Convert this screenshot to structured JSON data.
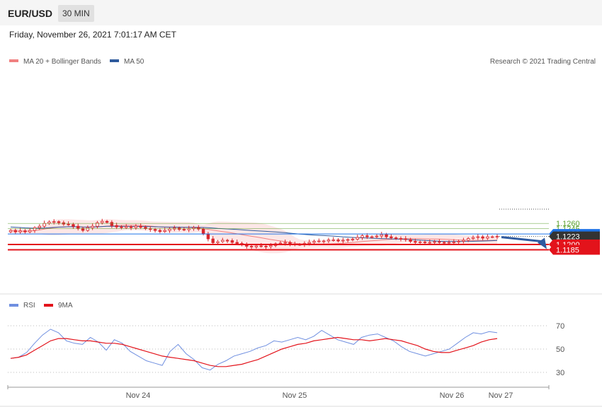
{
  "header": {
    "symbol": "EUR/USD",
    "timeframe": "30 MIN",
    "datetime": "Friday, November 26, 2021 7:01:17 AM CET"
  },
  "colors": {
    "band_fill": "#fde3e3",
    "ma20": "#f08080",
    "ma50": "#2e5a9c",
    "candle": "#d9262c",
    "green_level": "#5aa02c",
    "red_level": "#e3131b",
    "blue_level": "#1e73e8",
    "current_price": "#333333",
    "forecast_arrow": "#2e5aa0",
    "rsi": "#6f8fe0",
    "rsi_ma": "#e3131b"
  },
  "chart_data": [
    {
      "type": "candlestick",
      "title": "EUR/USD",
      "legend": [
        "MA 20 + Bollinger Bands",
        "MA 50"
      ],
      "legend_position": "top-left",
      "copyright": "Research © 2021 Trading Central",
      "ylim": [
        1.1182,
        1.1283
      ],
      "x_tick_labels": [
        "Nov 24",
        "Nov 25",
        "Nov 26",
        "Nov 27"
      ],
      "price_levels": [
        {
          "value": 1.126,
          "label": "1.1260",
          "style": "green-thin"
        },
        {
          "value": 1.1245,
          "label": "1.1245",
          "style": "green-thin"
        },
        {
          "value": 1.123,
          "label": "1.1230",
          "style": "blue-tag"
        },
        {
          "value": 1.1223,
          "label": "1.1223",
          "style": "current-price"
        },
        {
          "value": 1.12,
          "label": "1.1200",
          "style": "red-tag"
        },
        {
          "value": 1.1185,
          "label": "1.1185",
          "style": "red-tag"
        }
      ],
      "forecast_arrow": {
        "from": 1.1223,
        "to": 1.1185,
        "direction": "down"
      },
      "close": [
        1.124,
        1.1236,
        1.1239,
        1.1236,
        1.124,
        1.1248,
        1.1252,
        1.126,
        1.1264,
        1.1265,
        1.1262,
        1.1258,
        1.1257,
        1.1252,
        1.1246,
        1.124,
        1.1248,
        1.1252,
        1.1262,
        1.1266,
        1.1263,
        1.1254,
        1.125,
        1.1248,
        1.1251,
        1.1248,
        1.1252,
        1.1249,
        1.1245,
        1.1243,
        1.124,
        1.1237,
        1.124,
        1.1244,
        1.1247,
        1.1243,
        1.1242,
        1.1245,
        1.1248,
        1.1244,
        1.123,
        1.1216,
        1.1205,
        1.1208,
        1.1212,
        1.1211,
        1.1206,
        1.1203,
        1.1199,
        1.1195,
        1.1193,
        1.1196,
        1.1195,
        1.1194,
        1.1197,
        1.1202,
        1.1204,
        1.1206,
        1.1201,
        1.12,
        1.12,
        1.1203,
        1.1206,
        1.1209,
        1.121,
        1.121,
        1.1213,
        1.1213,
        1.121,
        1.1212,
        1.1214,
        1.1215,
        1.122,
        1.1225,
        1.1222,
        1.1222,
        1.1224,
        1.1228,
        1.1222,
        1.1219,
        1.1217,
        1.1216,
        1.1214,
        1.1209,
        1.1206,
        1.1207,
        1.1205,
        1.1206,
        1.1208,
        1.1206,
        1.1205,
        1.1206,
        1.1207,
        1.1209,
        1.1212,
        1.1217,
        1.122,
        1.1222,
        1.1218,
        1.1222,
        1.1222,
        1.1223
      ],
      "ma50_range": [
        1.125,
        1.1207
      ]
    },
    {
      "type": "line",
      "legend": [
        "RSI",
        "9MA"
      ],
      "legend_position": "top-left",
      "ylim": [
        20,
        80
      ],
      "y_ticks": [
        70,
        50,
        30
      ],
      "x_tick_labels": [
        "Nov 24",
        "Nov 25",
        "Nov 26",
        "Nov 27"
      ],
      "series": [
        {
          "name": "RSI",
          "values": [
            42,
            43,
            47,
            55,
            62,
            67,
            64,
            57,
            55,
            54,
            60,
            56,
            49,
            58,
            55,
            48,
            44,
            40,
            38,
            36,
            48,
            54,
            46,
            41,
            34,
            32,
            37,
            40,
            44,
            46,
            48,
            51,
            53,
            57,
            56,
            58,
            60,
            58,
            61,
            66,
            62,
            58,
            56,
            54,
            60,
            62,
            63,
            60,
            57,
            52,
            48,
            46,
            44,
            46,
            48,
            50,
            55,
            60,
            64,
            63,
            65,
            64
          ]
        },
        {
          "name": "9MA",
          "values": [
            42,
            43,
            45,
            49,
            53,
            57,
            59,
            59,
            58,
            57,
            57,
            56,
            55,
            55,
            54,
            52,
            50,
            48,
            46,
            44,
            43,
            42,
            41,
            40,
            38,
            36,
            35,
            35,
            36,
            37,
            39,
            41,
            44,
            47,
            50,
            52,
            54,
            55,
            57,
            58,
            59,
            60,
            59,
            58,
            58,
            57,
            58,
            59,
            58,
            57,
            55,
            53,
            50,
            48,
            47,
            47,
            49,
            51,
            53,
            56,
            58,
            59
          ]
        }
      ]
    }
  ]
}
